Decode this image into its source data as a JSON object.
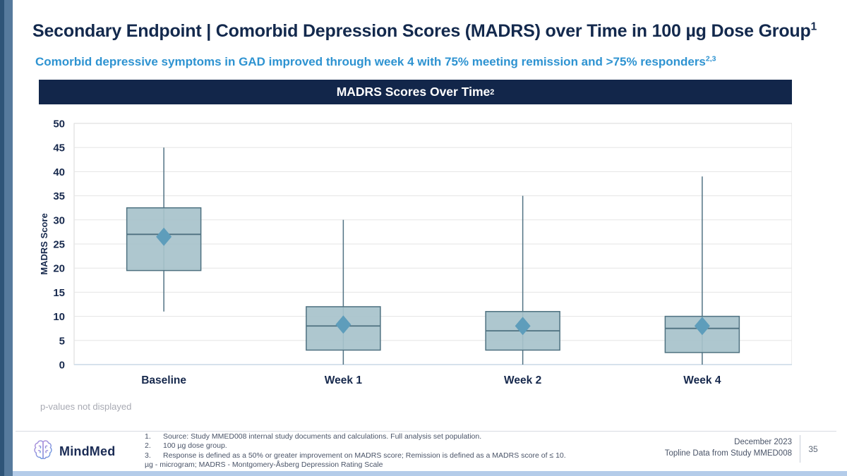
{
  "slide": {
    "title": "Secondary Endpoint | Comorbid Depression Scores (MADRS) over Time in 100 µg Dose Group",
    "title_superscript": "1",
    "subtitle": "Comorbid depressive symptoms in GAD improved through week 4 with 75% meeting remission and >75% responders",
    "subtitle_superscript": "2,3"
  },
  "chart_banner": {
    "text": "MADRS Scores Over Time",
    "superscript": "2"
  },
  "chart_note": "p-values not displayed",
  "chart_data": {
    "type": "boxplot",
    "title": "MADRS Scores Over Time",
    "xlabel": "",
    "ylabel": "MADRS Score",
    "ylim": [
      0,
      50
    ],
    "ytick_step": 5,
    "grid": true,
    "legend": false,
    "categories": [
      "Baseline",
      "Week 1",
      "Week 2",
      "Week 4"
    ],
    "series": [
      {
        "category": "Baseline",
        "whisker_low": 11,
        "q1": 19.5,
        "median": 27,
        "mean": 26.5,
        "q3": 32.5,
        "whisker_high": 45
      },
      {
        "category": "Week 1",
        "whisker_low": 0,
        "q1": 3,
        "median": 8,
        "mean": 8.3,
        "q3": 12,
        "whisker_high": 30
      },
      {
        "category": "Week 2",
        "whisker_low": 0,
        "q1": 3,
        "median": 7,
        "mean": 8,
        "q3": 11,
        "whisker_high": 35
      },
      {
        "category": "Week 4",
        "whisker_low": 0,
        "q1": 2.5,
        "median": 7.5,
        "mean": 8,
        "q3": 10,
        "whisker_high": 39
      }
    ],
    "colors": {
      "box_fill": "#a7c2cb",
      "box_stroke": "#4e7180",
      "whisker": "#527384",
      "mean_marker": "#5e9dbb",
      "grid": "#e5e5e5",
      "plot_border": "#d9d9d9",
      "axis_line": "#c9d8e6",
      "label_text": "#17294d"
    }
  },
  "footer": {
    "logo_text": "MindMed",
    "footnotes": [
      {
        "num": "1.",
        "text": "Source: Study MMED008 internal study documents and calculations. Full analysis set population."
      },
      {
        "num": "2.",
        "text": "100 µg dose group."
      },
      {
        "num": "3.",
        "text": "Response is defined as a 50% or greater improvement on MADRS score; Remission is defined as a MADRS score of ≤ 10."
      }
    ],
    "abbreviations": "µg - microgram; MADRS - Montgomery-Åsberg Depression Rating Scale",
    "date": "December 2023",
    "source_line": "Topline Data from Study MMED008",
    "page_number": "35"
  }
}
